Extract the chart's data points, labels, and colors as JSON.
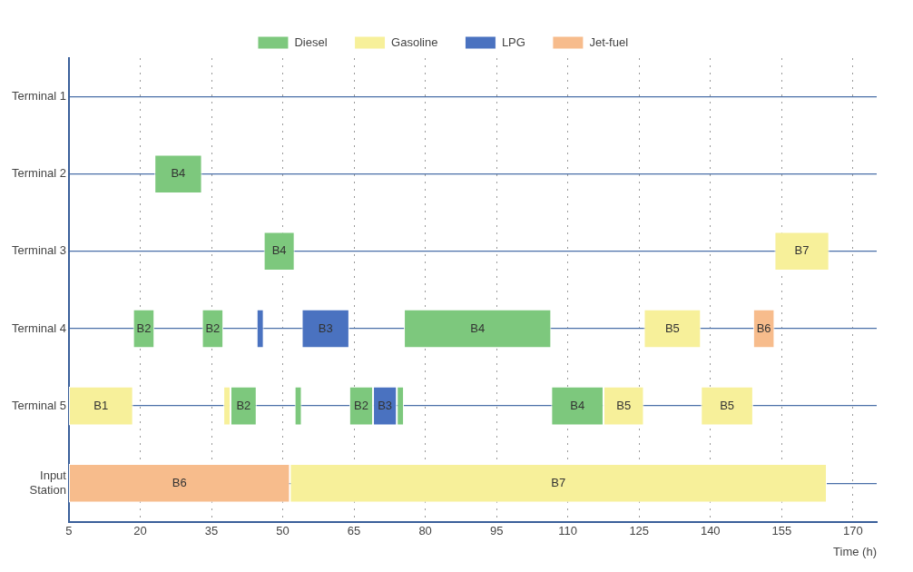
{
  "chart_data": {
    "type": "bar",
    "orientation": "horizontal",
    "xlabel": "Time (h)",
    "categories": [
      "Terminal 1",
      "Terminal 2",
      "Terminal 3",
      "Terminal 4",
      "Terminal 5",
      "Input Station"
    ],
    "xlim": [
      5,
      175
    ],
    "xticks": [
      5,
      20,
      35,
      50,
      65,
      80,
      95,
      110,
      125,
      140,
      155,
      170
    ],
    "grid": true,
    "legend": "top",
    "series": [
      {
        "name": "Diesel",
        "color": "#7dc87d",
        "base": [
          null,
          23,
          46,
          18.5,
          39,
          null
        ],
        "values": [
          null,
          10,
          6.5,
          4.5,
          5.5,
          null
        ],
        "value_labels": [
          null,
          "B4",
          "B4",
          "B2",
          "B2",
          null
        ]
      },
      {
        "color": "#7dc87d",
        "base": [
          null,
          null,
          null,
          33,
          64,
          null
        ],
        "values": [
          null,
          null,
          null,
          4.5,
          5,
          null
        ],
        "value_labels": [
          null,
          null,
          null,
          "B2",
          "B2",
          null
        ]
      },
      {
        "color": "#7dc87d",
        "base": [
          null,
          null,
          null,
          75.5,
          106.5,
          null
        ],
        "values": [
          null,
          null,
          null,
          31,
          11,
          null
        ],
        "value_labels": [
          null,
          null,
          null,
          "B4",
          "B4",
          null
        ]
      },
      {
        "color": "#7dc87d",
        "base": [
          null,
          null,
          null,
          null,
          52.5,
          null
        ],
        "values": [
          null,
          null,
          null,
          null,
          1.5,
          null
        ]
      },
      {
        "color": "#7dc87d",
        "base": [
          null,
          null,
          null,
          null,
          74,
          null
        ],
        "values": [
          null,
          null,
          null,
          null,
          1.5,
          null
        ]
      },
      {
        "name": "Gasoline",
        "color": "#f7f09a",
        "base": [
          null,
          null,
          153.5,
          126,
          5,
          51.5
        ],
        "values": [
          null,
          null,
          11.5,
          12,
          13.5,
          113
        ],
        "value_labels": [
          null,
          null,
          "B7",
          "B5",
          "B1",
          "B7"
        ]
      },
      {
        "color": "#f7f09a",
        "base": [
          null,
          null,
          null,
          null,
          37.5,
          null
        ],
        "values": [
          null,
          null,
          null,
          null,
          1.5,
          null
        ]
      },
      {
        "color": "#f7f09a",
        "base": [
          null,
          null,
          null,
          null,
          117.5,
          null
        ],
        "values": [
          null,
          null,
          null,
          null,
          8.5,
          null
        ],
        "value_labels": [
          null,
          null,
          null,
          null,
          "B5",
          null
        ]
      },
      {
        "color": "#f7f09a",
        "base": [
          null,
          null,
          null,
          null,
          138,
          null
        ],
        "values": [
          null,
          null,
          null,
          null,
          11,
          null
        ],
        "value_labels": [
          null,
          null,
          null,
          null,
          "B5",
          null
        ]
      },
      {
        "name": "LPG",
        "color": "#4a72c0",
        "base": [
          null,
          null,
          null,
          44.5,
          69,
          null
        ],
        "values": [
          null,
          null,
          null,
          1.5,
          5,
          null
        ],
        "value_labels": [
          null,
          null,
          null,
          null,
          "B3",
          null
        ]
      },
      {
        "color": "#4a72c0",
        "base": [
          null,
          null,
          null,
          54,
          null,
          null
        ],
        "values": [
          null,
          null,
          null,
          10,
          null,
          null
        ],
        "value_labels": [
          null,
          null,
          null,
          "B3",
          null,
          null
        ]
      },
      {
        "name": "Jet-fuel",
        "color": "#f7bc8c",
        "base": [
          null,
          null,
          null,
          149,
          null,
          5
        ],
        "values": [
          null,
          null,
          null,
          4.5,
          null,
          46.5
        ],
        "value_labels": [
          null,
          null,
          null,
          "B6",
          null,
          "B6"
        ]
      }
    ]
  }
}
